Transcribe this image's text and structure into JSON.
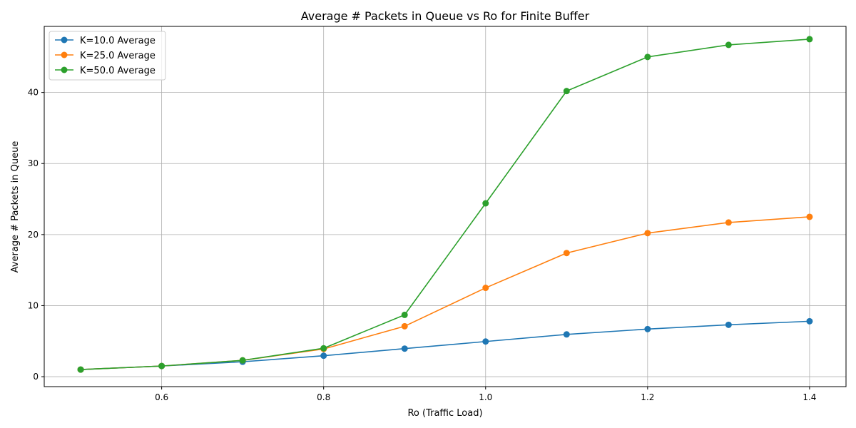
{
  "chart_data": {
    "type": "line",
    "title": "Average # Packets in Queue vs Ro for Finite Buffer",
    "xlabel": "Ro (Traffic Load)",
    "ylabel": "Average # Packets in Queue",
    "x": [
      0.5,
      0.6,
      0.7,
      0.8,
      0.9,
      1.0,
      1.1,
      1.2,
      1.3,
      1.4
    ],
    "xlim": [
      0.455,
      1.445
    ],
    "ylim": [
      -1.4,
      49.3
    ],
    "xticks": [
      0.6,
      0.8,
      1.0,
      1.2,
      1.4
    ],
    "xtick_labels": [
      "0.6",
      "0.8",
      "1.0",
      "1.2",
      "1.4"
    ],
    "yticks": [
      0,
      10,
      20,
      30,
      40
    ],
    "ytick_labels": [
      "0",
      "10",
      "20",
      "30",
      "40"
    ],
    "grid": true,
    "legend_position": "top-left",
    "series": [
      {
        "name": "K=10.0 Average",
        "color": "#1f77b4",
        "values": [
          1.0,
          1.5,
          2.1,
          2.95,
          3.95,
          4.95,
          5.95,
          6.7,
          7.3,
          7.8
        ]
      },
      {
        "name": "K=25.0 Average",
        "color": "#ff7f0e",
        "values": [
          1.0,
          1.5,
          2.3,
          3.9,
          7.1,
          12.5,
          17.4,
          20.2,
          21.7,
          22.5
        ]
      },
      {
        "name": "K=50.0 Average",
        "color": "#2ca02c",
        "values": [
          1.0,
          1.5,
          2.3,
          4.0,
          8.7,
          24.4,
          40.2,
          45.0,
          46.7,
          47.5
        ]
      }
    ]
  }
}
